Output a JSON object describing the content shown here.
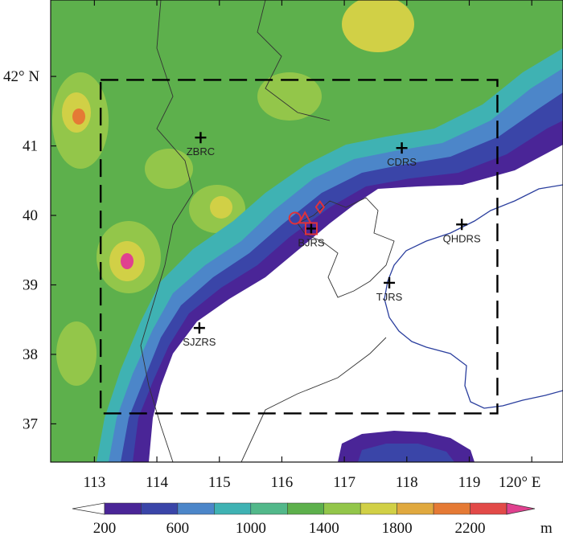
{
  "map": {
    "x_ticks": [
      {
        "value": 113,
        "label": "113"
      },
      {
        "value": 114,
        "label": "114"
      },
      {
        "value": 115,
        "label": "115"
      },
      {
        "value": 116,
        "label": "116"
      },
      {
        "value": 117,
        "label": "117"
      },
      {
        "value": 118,
        "label": "118"
      },
      {
        "value": 119,
        "label": "119"
      },
      {
        "value": 120,
        "label": "120° E"
      }
    ],
    "y_ticks": [
      {
        "value": 42,
        "label": "42° N"
      },
      {
        "value": 41,
        "label": "41"
      },
      {
        "value": 40,
        "label": "40"
      },
      {
        "value": 39,
        "label": "39"
      },
      {
        "value": 38,
        "label": "38"
      },
      {
        "value": 37,
        "label": "37"
      }
    ],
    "lon_range": [
      112.3,
      120.5
    ],
    "lat_range": [
      36.45,
      43.1
    ],
    "inner_domain": {
      "lon": [
        113.1,
        119.45
      ],
      "lat": [
        37.15,
        41.95
      ]
    },
    "stations": [
      {
        "id": "ZBRC",
        "label": "ZBRC",
        "lon": 114.7,
        "lat": 41.12
      },
      {
        "id": "CDRS",
        "label": "CDRS",
        "lon": 117.92,
        "lat": 40.97
      },
      {
        "id": "QHDRS",
        "label": "QHDRS",
        "lon": 118.88,
        "lat": 39.87
      },
      {
        "id": "BJRS",
        "label": "BJRS",
        "lon": 116.47,
        "lat": 39.81
      },
      {
        "id": "TJRS",
        "label": "TJRS",
        "lon": 117.72,
        "lat": 39.03
      },
      {
        "id": "SJZRS",
        "label": "SJZRS",
        "lon": 114.68,
        "lat": 38.38
      }
    ],
    "red_markers": [
      {
        "shape": "circle",
        "lon": 116.21,
        "lat": 39.96
      },
      {
        "shape": "triangle",
        "lon": 116.37,
        "lat": 39.95
      },
      {
        "shape": "diamond",
        "lon": 116.61,
        "lat": 40.12
      },
      {
        "shape": "square",
        "lon": 116.47,
        "lat": 39.81
      }
    ]
  },
  "colorbar": {
    "unit": "m",
    "tick_labels": [
      "200",
      "600",
      "1000",
      "1400",
      "1800",
      "2200"
    ],
    "colors": [
      "#ffffff",
      "#4a2597",
      "#3a45a8",
      "#4c86c9",
      "#3fb2b3",
      "#52b88a",
      "#5db04c",
      "#93c64a",
      "#d1d046",
      "#e0a93f",
      "#e57a35",
      "#e24a48",
      "#e0418f"
    ]
  }
}
